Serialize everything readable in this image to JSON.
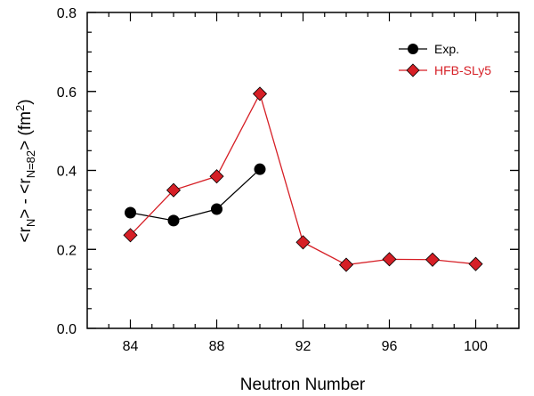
{
  "chart_data": {
    "type": "line",
    "title": "",
    "xlabel": "Neutron Number",
    "ylabel": {
      "prefix": "<r",
      "sub1": "N",
      "mid": "> - <r",
      "sub2": "N=82",
      "end": "> (fm",
      "sup": "2",
      "close": ")"
    },
    "xlim": [
      82,
      102
    ],
    "ylim": [
      0.0,
      0.8
    ],
    "xticks": [
      84,
      88,
      92,
      96,
      100
    ],
    "yticks": [
      0.0,
      0.2,
      0.4,
      0.6,
      0.8
    ],
    "ytick_labels": [
      "0.0",
      "0.2",
      "0.4",
      "0.6",
      "0.8"
    ],
    "xticks_minor": [
      83,
      84,
      85,
      86,
      87,
      88,
      89,
      90,
      91,
      92,
      93,
      94,
      95,
      96,
      97,
      98,
      99,
      100,
      101
    ],
    "yticks_minor": [
      0.05,
      0.1,
      0.15,
      0.2,
      0.25,
      0.3,
      0.35,
      0.4,
      0.45,
      0.5,
      0.55,
      0.6,
      0.65,
      0.7,
      0.75
    ],
    "legend_position": "top-right",
    "grid": false,
    "series": [
      {
        "name": "Exp.",
        "marker": "circle",
        "color": "#000000",
        "fill": "#000000",
        "x": [
          84,
          86,
          88,
          90
        ],
        "y": [
          0.293,
          0.273,
          0.302,
          0.403
        ]
      },
      {
        "name": "HFB-SLy5",
        "marker": "diamond",
        "color": "#d61f26",
        "fill": "#d61f26",
        "x": [
          84,
          86,
          88,
          90,
          92,
          94,
          96,
          98,
          100
        ],
        "y": [
          0.236,
          0.35,
          0.385,
          0.594,
          0.218,
          0.161,
          0.175,
          0.174,
          0.163
        ]
      }
    ]
  }
}
